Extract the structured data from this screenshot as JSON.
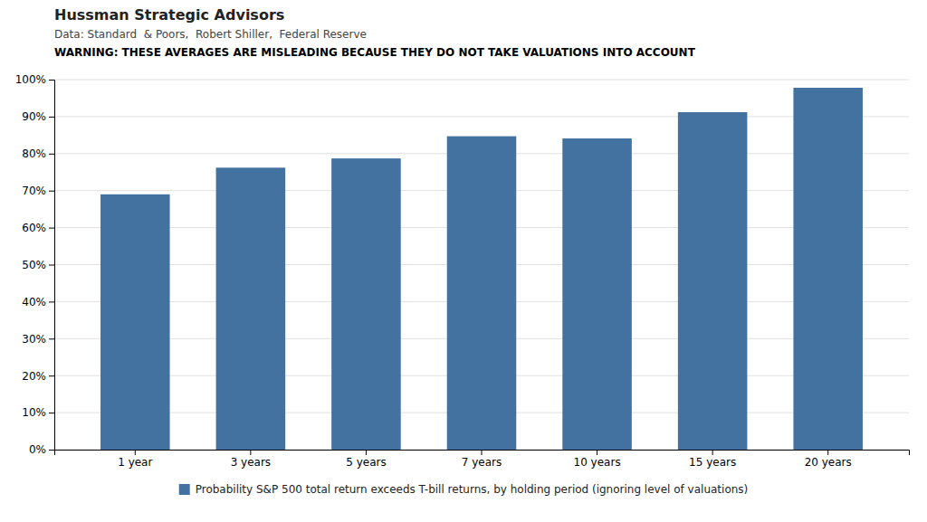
{
  "chart_data": {
    "type": "bar",
    "title": "Hussman Strategic Advisors",
    "subtitle": "Data: Standard  & Poors,  Robert Shiller,  Federal Reserve",
    "annotations": [
      "WARNING: THESE AVERAGES ARE MISLEADING BECAUSE THEY DO NOT TAKE VALUATIONS INTO ACCOUNT"
    ],
    "categories": [
      "1 year",
      "3 years",
      "5 years",
      "7 years",
      "10 years",
      "15 years",
      "20 years"
    ],
    "series": [
      {
        "name": "Probability S&P 500 total return exceeds T-bill returns, by holding period (ignoring level of valuations)",
        "color": "#4472a0",
        "values": [
          0.69,
          0.762,
          0.787,
          0.847,
          0.841,
          0.912,
          0.978
        ]
      }
    ],
    "ylim": [
      0,
      1.0
    ],
    "yticks": [
      {
        "value": 0,
        "label": "0%"
      },
      {
        "value": 0.1,
        "label": "10%"
      },
      {
        "value": 0.2,
        "label": "20%"
      },
      {
        "value": 0.3,
        "label": "30%"
      },
      {
        "value": 0.4,
        "label": "40%"
      },
      {
        "value": 0.5,
        "label": "50%"
      },
      {
        "value": 0.6,
        "label": "60%"
      },
      {
        "value": 0.7,
        "label": "70%"
      },
      {
        "value": 0.8,
        "label": "80%"
      },
      {
        "value": 0.9,
        "label": "90%"
      },
      {
        "value": 1.0,
        "label": "100%"
      }
    ],
    "grid": true,
    "legend": "bottom"
  }
}
